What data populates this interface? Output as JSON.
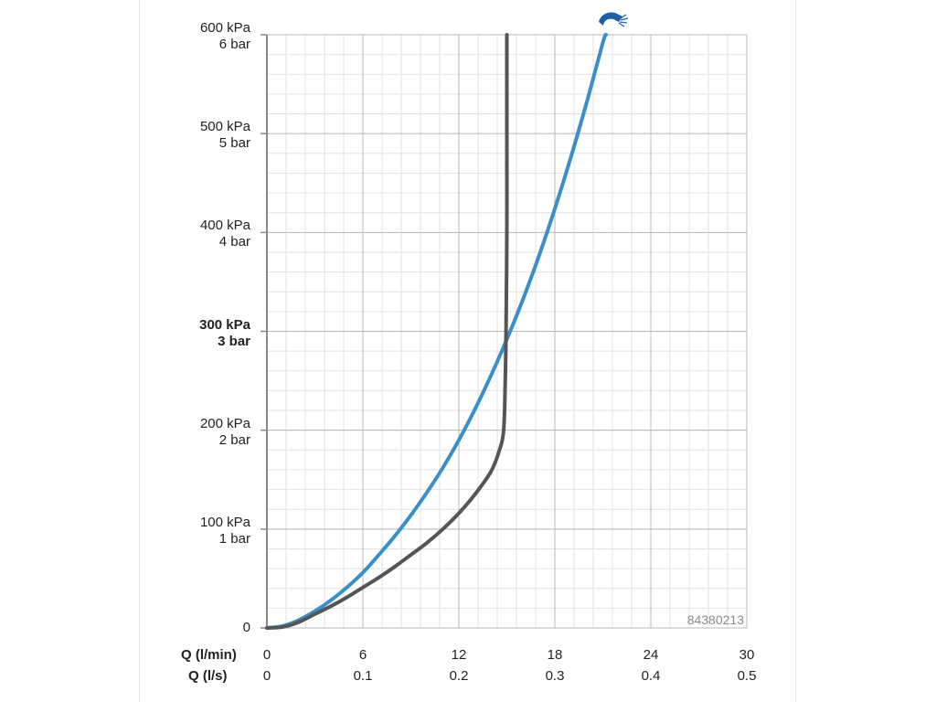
{
  "chart_data": {
    "type": "line",
    "x_axis": {
      "title_primary": "Q (l/min)",
      "title_secondary": "Q (l/s)",
      "ticks_primary": [
        "0",
        "6",
        "12",
        "18",
        "24",
        "30"
      ],
      "ticks_secondary": [
        "0",
        "0.1",
        "0.2",
        "0.3",
        "0.4",
        "0.5"
      ],
      "range": [
        0,
        30
      ]
    },
    "y_axis": {
      "range": [
        0,
        600
      ],
      "unit": "kPa",
      "ticks": [
        {
          "value": 0,
          "line1": "0",
          "line2": "",
          "bold": false
        },
        {
          "value": 100,
          "line1": "100 kPa",
          "line2": "1 bar",
          "bold": false
        },
        {
          "value": 200,
          "line1": "200 kPa",
          "line2": "2 bar",
          "bold": false
        },
        {
          "value": 300,
          "line1": "300 kPa",
          "line2": "3 bar",
          "bold": true
        },
        {
          "value": 400,
          "line1": "400 kPa",
          "line2": "4 bar",
          "bold": false
        },
        {
          "value": 500,
          "line1": "500 kPa",
          "line2": "5 bar",
          "bold": false
        },
        {
          "value": 600,
          "line1": "600 kPa",
          "line2": "6 bar",
          "bold": false
        }
      ]
    },
    "grid": true,
    "series": [
      {
        "color": "#3a8fc8",
        "points": [
          [
            0,
            0
          ],
          [
            1,
            2
          ],
          [
            2,
            8
          ],
          [
            3,
            17
          ],
          [
            4,
            28
          ],
          [
            5,
            41
          ],
          [
            6,
            56
          ],
          [
            7,
            74
          ],
          [
            8,
            93
          ],
          [
            9,
            114
          ],
          [
            10,
            137
          ],
          [
            11,
            162
          ],
          [
            12,
            190
          ],
          [
            13,
            221
          ],
          [
            14,
            255
          ],
          [
            15,
            292
          ],
          [
            16,
            332
          ],
          [
            17,
            376
          ],
          [
            18,
            424
          ],
          [
            19,
            476
          ],
          [
            20,
            532
          ],
          [
            21,
            592
          ],
          [
            21.2,
            600
          ]
        ]
      },
      {
        "color": "#555555",
        "points": [
          [
            0,
            0
          ],
          [
            1,
            1
          ],
          [
            2,
            6
          ],
          [
            3,
            14
          ],
          [
            4,
            22
          ],
          [
            5,
            31
          ],
          [
            6,
            41
          ],
          [
            7,
            51
          ],
          [
            8,
            62
          ],
          [
            9,
            74
          ],
          [
            10,
            86
          ],
          [
            11,
            100
          ],
          [
            12,
            116
          ],
          [
            13,
            135
          ],
          [
            14,
            158
          ],
          [
            14.5,
            178
          ],
          [
            14.8,
            200
          ],
          [
            14.9,
            250
          ],
          [
            14.95,
            300
          ],
          [
            15,
            400
          ],
          [
            15,
            500
          ],
          [
            15,
            600
          ]
        ]
      }
    ],
    "product_code": "84380213"
  },
  "icon": {
    "name": "shower-head-icon",
    "color": "#1f5fa8"
  }
}
